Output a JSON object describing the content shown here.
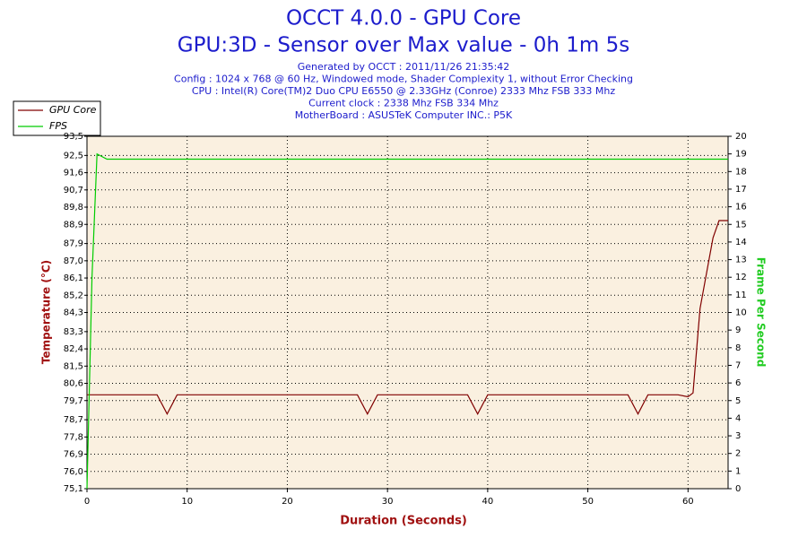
{
  "chart_data": {
    "type": "line",
    "title": "OCCT 4.0.0 - GPU Core",
    "subtitle": "GPU:3D - Sensor over Max value - 0h 1m 5s",
    "info": [
      "Generated by OCCT : 2011/11/26 21:35:42",
      "Config : 1024 x 768 @ 60 Hz, Windowed mode, Shader Complexity 1, without Error Checking",
      "CPU : Intel(R) Core(TM)2 Duo CPU E6550 @ 2.33GHz (Conroe) 2333 Mhz FSB 333 Mhz",
      "Current clock : 2338 Mhz FSB 334 Mhz",
      "MotherBoard : ASUSTeK Computer INC.: P5K"
    ],
    "x_label": "Duration (Seconds)",
    "y_label": "Temperature (°C)",
    "y2_label": "Frame Per Second",
    "xlim": [
      0,
      64
    ],
    "xticks": [
      0,
      10,
      20,
      30,
      40,
      50,
      60
    ],
    "ylim": [
      75.1,
      93.5
    ],
    "yticks": [
      {
        "value": 75.1,
        "label": "75,1"
      },
      {
        "value": 76.0,
        "label": "76,0"
      },
      {
        "value": 76.9,
        "label": "76,9"
      },
      {
        "value": 77.8,
        "label": "77,8"
      },
      {
        "value": 78.7,
        "label": "78,7"
      },
      {
        "value": 79.7,
        "label": "79,7"
      },
      {
        "value": 80.6,
        "label": "80,6"
      },
      {
        "value": 81.5,
        "label": "81,5"
      },
      {
        "value": 82.4,
        "label": "82,4"
      },
      {
        "value": 83.3,
        "label": "83,3"
      },
      {
        "value": 84.3,
        "label": "84,3"
      },
      {
        "value": 85.2,
        "label": "85,2"
      },
      {
        "value": 86.1,
        "label": "86,1"
      },
      {
        "value": 87.0,
        "label": "87,0"
      },
      {
        "value": 87.9,
        "label": "87,9"
      },
      {
        "value": 88.9,
        "label": "88,9"
      },
      {
        "value": 89.8,
        "label": "89,8"
      },
      {
        "value": 90.7,
        "label": "90,7"
      },
      {
        "value": 91.6,
        "label": "91,6"
      },
      {
        "value": 92.5,
        "label": "92,5"
      },
      {
        "value": 93.5,
        "label": "93,5"
      }
    ],
    "y2lim": [
      0,
      20
    ],
    "y2ticks": [
      0,
      1,
      2,
      3,
      4,
      5,
      6,
      7,
      8,
      9,
      10,
      11,
      12,
      13,
      14,
      15,
      16,
      17,
      18,
      19,
      20
    ],
    "grid": true,
    "series": [
      {
        "name": "GPU Core",
        "color": "#800000",
        "x": [
          0,
          7,
          8,
          9,
          27,
          28,
          29,
          38,
          39,
          40,
          54,
          55,
          56,
          59,
          60,
          60.5,
          61.2,
          62.5,
          63.1,
          64
        ],
        "values": [
          80,
          80,
          79,
          80,
          80,
          79,
          80,
          80,
          79,
          80,
          80,
          79,
          80,
          80,
          79.9,
          80.1,
          84.5,
          88.2,
          89.1,
          89.1
        ]
      },
      {
        "name": "FPS",
        "color": "#00cc00",
        "axis": "y2",
        "x": [
          0,
          0.5,
          1,
          2,
          64
        ],
        "values": [
          0,
          12,
          19,
          18.7,
          18.7
        ]
      }
    ]
  }
}
